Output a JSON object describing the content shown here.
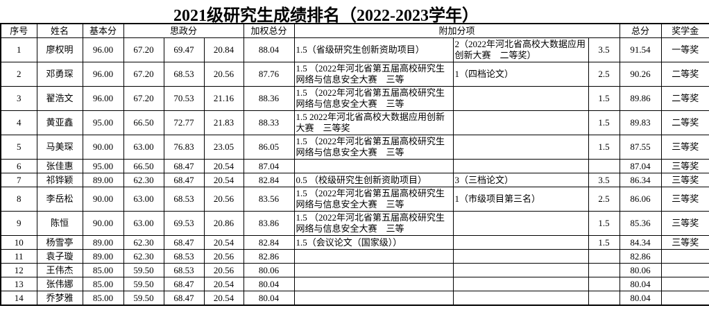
{
  "title": "2021级研究生成绩排名（2022-2023学年）",
  "table": {
    "headers": {
      "no": "序号",
      "name": "姓名",
      "base": "基本分",
      "sizheng": "思政分",
      "weighted": "加权总分",
      "extra": "附加分项",
      "total": "总分",
      "award": "奖学金"
    },
    "rows": [
      {
        "no": "1",
        "name": "廖权明",
        "base": "96.00",
        "sz1": "67.20",
        "sz2": "69.47",
        "sz3": "20.84",
        "weighted": "88.04",
        "extra1": "1.5（省级研究生创新资助项目）",
        "extra2": "2（2022年河北省高校大数据应用创新大赛　二等奖）",
        "extra_score": "3.5",
        "total": "91.54",
        "award": "一等奖"
      },
      {
        "no": "2",
        "name": "邓勇琛",
        "base": "96.00",
        "sz1": "67.20",
        "sz2": "68.53",
        "sz3": "20.56",
        "weighted": "87.76",
        "extra1": "1.5 （2022年河北省第五届高校研究生网络与信息安全大赛　三等",
        "extra2": "1（四档论文）",
        "extra_score": "2.5",
        "total": "90.26",
        "award": "二等奖"
      },
      {
        "no": "3",
        "name": "翟浩文",
        "base": "96.00",
        "sz1": "67.20",
        "sz2": "70.53",
        "sz3": "21.16",
        "weighted": "88.36",
        "extra1": "1.5 （2022年河北省第五届高校研究生网络与信息安全大赛　三等",
        "extra2": "",
        "extra_score": "1.5",
        "total": "89.86",
        "award": "二等奖"
      },
      {
        "no": "4",
        "name": "黄亚鑫",
        "base": "95.00",
        "sz1": "66.50",
        "sz2": "72.77",
        "sz3": "21.83",
        "weighted": "88.33",
        "extra1": "1.5 2022年河北省高校大数据应用创新大赛　三等奖",
        "extra2": "",
        "extra_score": "1.5",
        "total": "89.83",
        "award": "二等奖"
      },
      {
        "no": "5",
        "name": "马美琛",
        "base": "90.00",
        "sz1": "63.00",
        "sz2": "76.83",
        "sz3": "23.05",
        "weighted": "86.05",
        "extra1": "1.5 （2022年河北省第五届高校研究生网络与信息安全大赛　三等",
        "extra2": "",
        "extra_score": "1.5",
        "total": "87.55",
        "award": "三等奖"
      },
      {
        "no": "6",
        "name": "张佳惠",
        "base": "95.00",
        "sz1": "66.50",
        "sz2": "68.47",
        "sz3": "20.54",
        "weighted": "87.04",
        "extra1": "",
        "extra2": "",
        "extra_score": "",
        "total": "87.04",
        "award": "三等奖"
      },
      {
        "no": "7",
        "name": "祁铧颖",
        "base": "89.00",
        "sz1": "62.30",
        "sz2": "68.47",
        "sz3": "20.54",
        "weighted": "82.84",
        "extra1": "0.5 （校级研究生创新资助项目）",
        "extra2": "3（三档论文）",
        "extra_score": "3.5",
        "total": "86.34",
        "award": "三等奖"
      },
      {
        "no": "8",
        "name": "李岳松",
        "base": "90.00",
        "sz1": "63.00",
        "sz2": "68.53",
        "sz3": "20.56",
        "weighted": "83.56",
        "extra1": "1.5 （2022年河北省第五届高校研究生网络与信息安全大赛　三等",
        "extra2": "1（市级项目第三名）",
        "extra_score": "2.5",
        "total": "86.06",
        "award": "三等奖"
      },
      {
        "no": "9",
        "name": "陈恒",
        "base": "90.00",
        "sz1": "63.00",
        "sz2": "69.53",
        "sz3": "20.86",
        "weighted": "83.86",
        "extra1": "1.5 （2022年河北省第五届高校研究生网络与信息安全大赛　三等",
        "extra2": "",
        "extra_score": "1.5",
        "total": "85.36",
        "award": "三等奖"
      },
      {
        "no": "10",
        "name": "杨雪亭",
        "base": "89.00",
        "sz1": "62.30",
        "sz2": "68.47",
        "sz3": "20.54",
        "weighted": "82.84",
        "extra1": "1.5（会议论文（国家级））",
        "extra2": "",
        "extra_score": "1.5",
        "total": "84.34",
        "award": "三等奖"
      },
      {
        "no": "11",
        "name": "袁子璇",
        "base": "89.00",
        "sz1": "62.30",
        "sz2": "68.53",
        "sz3": "20.56",
        "weighted": "82.86",
        "extra1": "",
        "extra2": "",
        "extra_score": "",
        "total": "82.86",
        "award": ""
      },
      {
        "no": "12",
        "name": "王伟杰",
        "base": "85.00",
        "sz1": "59.50",
        "sz2": "68.53",
        "sz3": "20.56",
        "weighted": "80.06",
        "extra1": "",
        "extra2": "",
        "extra_score": "",
        "total": "80.06",
        "award": ""
      },
      {
        "no": "13",
        "name": "张伟娜",
        "base": "85.00",
        "sz1": "59.50",
        "sz2": "68.47",
        "sz3": "20.54",
        "weighted": "80.04",
        "extra1": "",
        "extra2": "",
        "extra_score": "",
        "total": "80.04",
        "award": ""
      },
      {
        "no": "14",
        "name": "乔梦雅",
        "base": "85.00",
        "sz1": "59.50",
        "sz2": "68.47",
        "sz3": "20.54",
        "weighted": "80.04",
        "extra1": "",
        "extra2": "",
        "extra_score": "",
        "total": "80.04",
        "award": ""
      }
    ]
  }
}
